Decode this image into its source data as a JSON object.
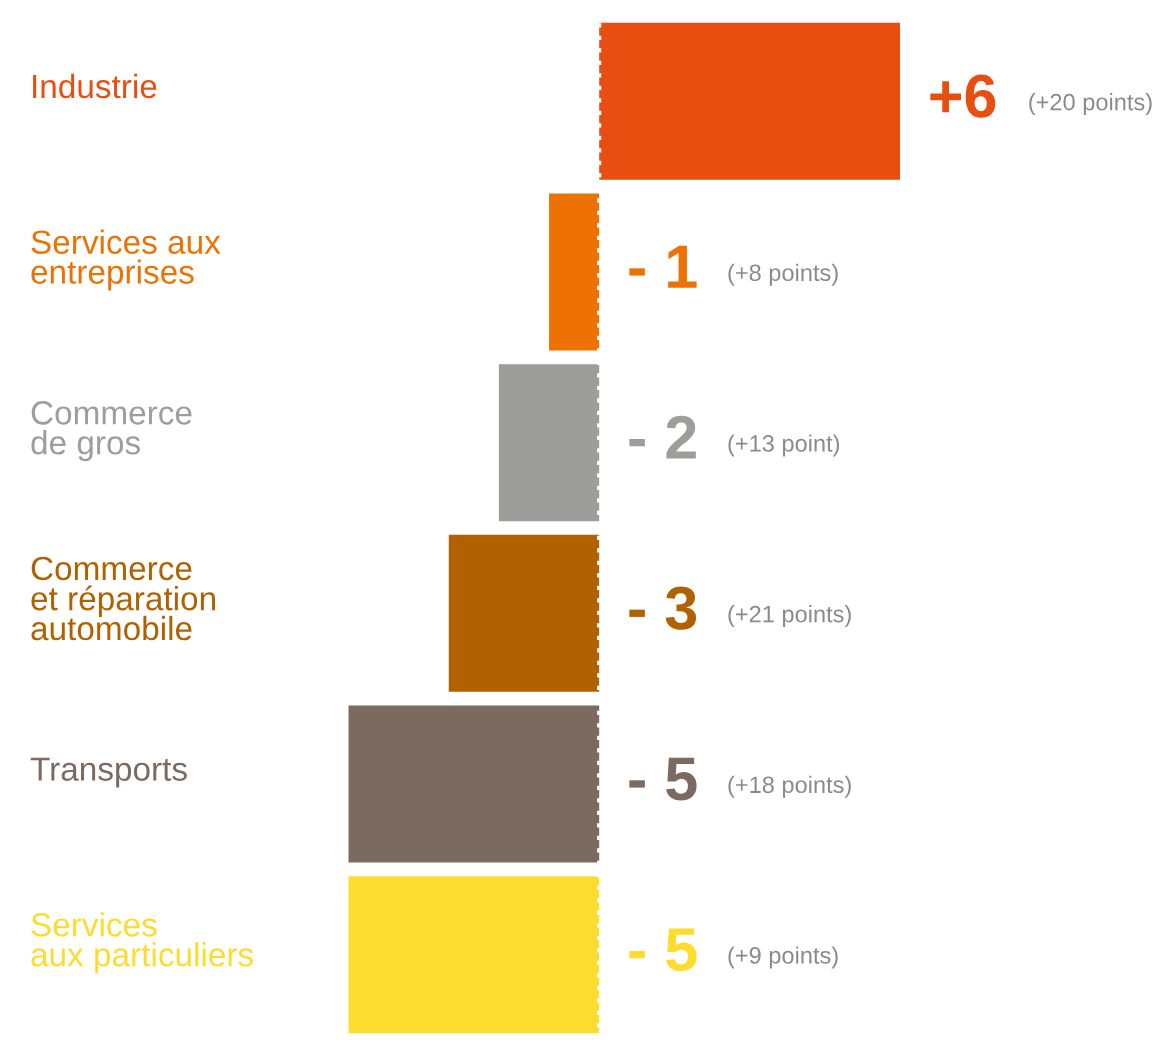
{
  "chart_data": {
    "type": "bar",
    "orientation": "horizontal",
    "categories": [
      "Industrie",
      "Services aux\nentreprises",
      "Commerce\nde gros",
      "Commerce\net réparation\nautomobile",
      "Transports",
      "Services\naux particuliers"
    ],
    "values": [
      6,
      -1,
      -2,
      -3,
      -5,
      -5
    ],
    "colors": [
      "#e84e0f",
      "#ee7203",
      "#9d9d9c",
      "#b06100",
      "#7a6a60",
      "#fcdc2f"
    ],
    "value_labels": [
      "+6",
      "- 1",
      "- 2",
      "- 3",
      "- 5",
      "- 5"
    ],
    "annotations": [
      "(+20 points)",
      "(+8 points)",
      "(+13 point)",
      "(+21 points)",
      "(+18 points)",
      "(+9 points)"
    ],
    "ref_lines": [
      {
        "axis": "x",
        "value": 0,
        "color": "#ffffff",
        "line_style": "dotted"
      }
    ],
    "legend": false
  }
}
